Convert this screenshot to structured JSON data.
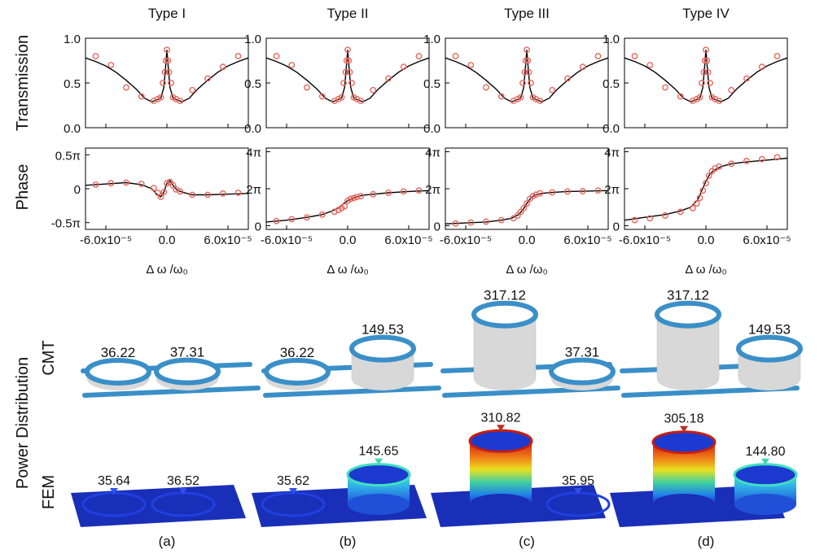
{
  "chart_data": [
    {
      "type": "line",
      "panel": "a",
      "title": "Type I",
      "transmission": {
        "ylabel": "Transmission",
        "ylim": [
          0.0,
          1.0
        ],
        "yticks": [
          "0.0",
          "0.5",
          "1.0"
        ],
        "fit": {
          "x": [
            -8e-05,
            -7e-05,
            -6e-05,
            -5e-05,
            -4e-05,
            -3e-05,
            -2.2e-05,
            -1.5e-05,
            -1e-05,
            -6e-06,
            -3e-06,
            -1e-06,
            0,
            1e-06,
            3e-06,
            6e-06,
            1e-05,
            1.5e-05,
            2.2e-05,
            3e-05,
            4e-05,
            5e-05,
            6e-05,
            7e-05,
            8e-05
          ],
          "y": [
            0.78,
            0.74,
            0.69,
            0.62,
            0.53,
            0.43,
            0.33,
            0.29,
            0.31,
            0.33,
            0.45,
            0.72,
            0.87,
            0.72,
            0.45,
            0.33,
            0.31,
            0.29,
            0.33,
            0.43,
            0.53,
            0.62,
            0.69,
            0.74,
            0.78
          ]
        },
        "points": {
          "x": [
            -7e-05,
            -5.5e-05,
            -4e-05,
            -2.5e-05,
            -1.3e-05,
            -9e-06,
            -6e-06,
            -4e-06,
            -2e-06,
            -1e-06,
            0,
            1e-06,
            2e-06,
            4e-06,
            6e-06,
            9e-06,
            1.3e-05,
            2.5e-05,
            4e-05,
            5.5e-05,
            7e-05
          ],
          "y": [
            0.8,
            0.7,
            0.45,
            0.35,
            0.3,
            0.32,
            0.34,
            0.5,
            0.62,
            0.75,
            0.87,
            0.75,
            0.62,
            0.5,
            0.34,
            0.32,
            0.3,
            0.42,
            0.55,
            0.68,
            0.8
          ]
        }
      },
      "phase": {
        "ylabel": "Phase",
        "ylim": [
          -0.6,
          0.6
        ],
        "yticks": [
          {
            "v": 0.5,
            "label": "0.5π"
          },
          {
            "v": 0,
            "label": "0"
          },
          {
            "v": -0.5,
            "label": "-0.5π"
          }
        ],
        "fit": {
          "x": [
            -8e-05,
            -6e-05,
            -4e-05,
            -2.5e-05,
            -1.5e-05,
            -1e-05,
            -6e-06,
            -3e-06,
            0,
            3e-06,
            6e-06,
            1e-05,
            1.5e-05,
            2.5e-05,
            4e-05,
            6e-05,
            8e-05
          ],
          "y": [
            0.05,
            0.07,
            0.09,
            0.06,
            0.0,
            -0.08,
            -0.12,
            -0.05,
            0.08,
            0.12,
            0.05,
            -0.02,
            -0.05,
            -0.09,
            -0.09,
            -0.08,
            -0.07
          ]
        },
        "points": {
          "x": [
            -7e-05,
            -5.5e-05,
            -4e-05,
            -2.5e-05,
            -1.3e-05,
            -9e-06,
            -6e-06,
            -3e-06,
            0,
            3e-06,
            6e-06,
            9e-06,
            1.3e-05,
            2.5e-05,
            4e-05,
            5.5e-05,
            7e-05
          ],
          "y": [
            0.06,
            0.08,
            0.09,
            0.07,
            0.01,
            -0.06,
            -0.12,
            -0.05,
            0.08,
            0.1,
            0.05,
            -0.01,
            -0.04,
            -0.09,
            -0.09,
            -0.07,
            -0.06
          ]
        }
      },
      "xlabel": "Δ ω /ω₀",
      "xticks": [
        {
          "v": -6e-05,
          "label": "-6.0x10⁻⁵"
        },
        {
          "v": 0,
          "label": "0.0"
        },
        {
          "v": 6e-05,
          "label": "6.0x10⁻⁵"
        }
      ],
      "xlim": [
        -8e-05,
        8e-05
      ]
    },
    {
      "type": "line",
      "panel": "b",
      "title": "Type II",
      "transmission": {
        "ylabel": "Transmission",
        "ylim": [
          0.0,
          1.0
        ],
        "yticks": [
          "0.0",
          "0.5",
          "1.0"
        ],
        "fit": {
          "x": [
            -8e-05,
            -7e-05,
            -6e-05,
            -5e-05,
            -4e-05,
            -3e-05,
            -2.2e-05,
            -1.5e-05,
            -1e-05,
            -6e-06,
            -3e-06,
            -1e-06,
            0,
            1e-06,
            3e-06,
            6e-06,
            1e-05,
            1.5e-05,
            2.2e-05,
            3e-05,
            4e-05,
            5e-05,
            6e-05,
            7e-05,
            8e-05
          ],
          "y": [
            0.78,
            0.74,
            0.69,
            0.62,
            0.53,
            0.43,
            0.33,
            0.29,
            0.31,
            0.33,
            0.45,
            0.72,
            0.87,
            0.72,
            0.45,
            0.33,
            0.31,
            0.29,
            0.33,
            0.43,
            0.53,
            0.62,
            0.69,
            0.74,
            0.78
          ]
        },
        "points": {
          "x": [
            -7e-05,
            -5.5e-05,
            -4e-05,
            -2.5e-05,
            -1.3e-05,
            -9e-06,
            -6e-06,
            -4e-06,
            -2e-06,
            -1e-06,
            0,
            1e-06,
            2e-06,
            4e-06,
            6e-06,
            9e-06,
            1.3e-05,
            2.5e-05,
            4e-05,
            5.5e-05,
            7e-05
          ],
          "y": [
            0.8,
            0.7,
            0.45,
            0.35,
            0.3,
            0.32,
            0.34,
            0.5,
            0.62,
            0.75,
            0.87,
            0.75,
            0.62,
            0.5,
            0.34,
            0.32,
            0.3,
            0.42,
            0.55,
            0.68,
            0.8
          ]
        }
      },
      "phase": {
        "ylabel": "Phase",
        "ylim": [
          -0.2,
          4.2
        ],
        "yticks": [
          {
            "v": 4,
            "label": "4π"
          },
          {
            "v": 2,
            "label": "2π"
          },
          {
            "v": 0,
            "label": "0"
          }
        ],
        "fit": {
          "x": [
            -8e-05,
            -6e-05,
            -4e-05,
            -2.5e-05,
            -1.5e-05,
            -8e-06,
            -4e-06,
            0,
            4e-06,
            8e-06,
            1.5e-05,
            2.5e-05,
            4e-05,
            6e-05,
            8e-05
          ],
          "y": [
            0.2,
            0.3,
            0.45,
            0.6,
            0.8,
            1.0,
            1.2,
            1.35,
            1.45,
            1.55,
            1.65,
            1.7,
            1.78,
            1.85,
            1.9
          ]
        },
        "points": {
          "x": [
            -7e-05,
            -5.5e-05,
            -4e-05,
            -2.5e-05,
            -1.3e-05,
            -9e-06,
            -6e-06,
            -3e-06,
            0,
            3e-06,
            6e-06,
            9e-06,
            1.3e-05,
            2.5e-05,
            4e-05,
            5.5e-05,
            7e-05
          ],
          "y": [
            0.25,
            0.35,
            0.45,
            0.6,
            0.75,
            0.85,
            0.95,
            1.05,
            1.35,
            1.45,
            1.5,
            1.55,
            1.6,
            1.7,
            1.78,
            1.85,
            1.9
          ]
        }
      },
      "xlabel": "Δ ω /ω₀",
      "xticks": [
        {
          "v": -6e-05,
          "label": "-6.0x10⁻⁵"
        },
        {
          "v": 0,
          "label": "0.0"
        },
        {
          "v": 6e-05,
          "label": "6.0x10⁻⁵"
        }
      ],
      "xlim": [
        -8e-05,
        8e-05
      ]
    },
    {
      "type": "line",
      "panel": "c",
      "title": "Type III",
      "transmission": {
        "ylabel": "Transmission",
        "ylim": [
          0.0,
          1.0
        ],
        "yticks": [
          "0.0",
          "0.5",
          "1.0"
        ],
        "fit": {
          "x": [
            -8e-05,
            -7e-05,
            -6e-05,
            -5e-05,
            -4e-05,
            -3e-05,
            -2.2e-05,
            -1.5e-05,
            -1e-05,
            -6e-06,
            -3e-06,
            -1e-06,
            0,
            1e-06,
            3e-06,
            6e-06,
            1e-05,
            1.5e-05,
            2.2e-05,
            3e-05,
            4e-05,
            5e-05,
            6e-05,
            7e-05,
            8e-05
          ],
          "y": [
            0.78,
            0.74,
            0.69,
            0.62,
            0.53,
            0.43,
            0.33,
            0.29,
            0.31,
            0.33,
            0.45,
            0.72,
            0.87,
            0.72,
            0.45,
            0.33,
            0.31,
            0.29,
            0.33,
            0.43,
            0.53,
            0.62,
            0.69,
            0.74,
            0.78
          ]
        },
        "points": {
          "x": [
            -7e-05,
            -5.5e-05,
            -4e-05,
            -2.5e-05,
            -1.3e-05,
            -9e-06,
            -6e-06,
            -4e-06,
            -2e-06,
            -1e-06,
            0,
            1e-06,
            2e-06,
            4e-06,
            6e-06,
            9e-06,
            1.3e-05,
            2.5e-05,
            4e-05,
            5.5e-05,
            7e-05
          ],
          "y": [
            0.8,
            0.7,
            0.45,
            0.35,
            0.3,
            0.32,
            0.34,
            0.5,
            0.62,
            0.75,
            0.87,
            0.75,
            0.62,
            0.5,
            0.34,
            0.32,
            0.3,
            0.42,
            0.55,
            0.68,
            0.8
          ]
        }
      },
      "phase": {
        "ylabel": "Phase",
        "ylim": [
          -0.2,
          4.2
        ],
        "yticks": [
          {
            "v": 4,
            "label": "4π"
          },
          {
            "v": 2,
            "label": "2π"
          },
          {
            "v": 0,
            "label": "0"
          }
        ],
        "fit": {
          "x": [
            -8e-05,
            -6e-05,
            -4e-05,
            -2.5e-05,
            -1.5e-05,
            -8e-06,
            -4e-06,
            0,
            4e-06,
            8e-06,
            1.5e-05,
            2.5e-05,
            4e-05,
            6e-05,
            8e-05
          ],
          "y": [
            0.1,
            0.15,
            0.2,
            0.3,
            0.4,
            0.6,
            0.85,
            1.2,
            1.5,
            1.65,
            1.75,
            1.8,
            1.85,
            1.87,
            1.9
          ]
        },
        "points": {
          "x": [
            -7e-05,
            -5.5e-05,
            -4e-05,
            -2.5e-05,
            -1.3e-05,
            -9e-06,
            -6e-06,
            -3e-06,
            0,
            3e-06,
            6e-06,
            9e-06,
            1.3e-05,
            2.5e-05,
            4e-05,
            5.5e-05,
            7e-05
          ],
          "y": [
            0.12,
            0.17,
            0.22,
            0.3,
            0.4,
            0.55,
            0.75,
            0.95,
            1.2,
            1.45,
            1.6,
            1.68,
            1.75,
            1.8,
            1.85,
            1.87,
            1.9
          ]
        }
      },
      "xlabel": "Δ ω /ω₀",
      "xticks": [
        {
          "v": -6e-05,
          "label": "-6.0x10⁻⁵"
        },
        {
          "v": 0,
          "label": "0.0"
        },
        {
          "v": 6e-05,
          "label": "6.0x10⁻⁵"
        }
      ],
      "xlim": [
        -8e-05,
        8e-05
      ]
    },
    {
      "type": "line",
      "panel": "d",
      "title": "Type IV",
      "transmission": {
        "ylabel": "Transmission",
        "ylim": [
          0.0,
          1.0
        ],
        "yticks": [
          "0.0",
          "0.5",
          "1.0"
        ],
        "fit": {
          "x": [
            -8e-05,
            -7e-05,
            -6e-05,
            -5e-05,
            -4e-05,
            -3e-05,
            -2.2e-05,
            -1.5e-05,
            -1e-05,
            -6e-06,
            -3e-06,
            -1e-06,
            0,
            1e-06,
            3e-06,
            6e-06,
            1e-05,
            1.5e-05,
            2.2e-05,
            3e-05,
            4e-05,
            5e-05,
            6e-05,
            7e-05,
            8e-05
          ],
          "y": [
            0.78,
            0.74,
            0.69,
            0.62,
            0.53,
            0.43,
            0.33,
            0.29,
            0.31,
            0.33,
            0.45,
            0.72,
            0.87,
            0.72,
            0.45,
            0.33,
            0.31,
            0.29,
            0.33,
            0.43,
            0.53,
            0.62,
            0.69,
            0.74,
            0.78
          ]
        },
        "points": {
          "x": [
            -7e-05,
            -5.5e-05,
            -4e-05,
            -2.5e-05,
            -1.3e-05,
            -9e-06,
            -6e-06,
            -4e-06,
            -2e-06,
            -1e-06,
            0,
            1e-06,
            2e-06,
            4e-06,
            6e-06,
            9e-06,
            1.3e-05,
            2.5e-05,
            4e-05,
            5.5e-05,
            7e-05
          ],
          "y": [
            0.8,
            0.7,
            0.45,
            0.35,
            0.3,
            0.32,
            0.34,
            0.5,
            0.62,
            0.75,
            0.87,
            0.75,
            0.62,
            0.5,
            0.34,
            0.32,
            0.3,
            0.42,
            0.55,
            0.68,
            0.8
          ]
        }
      },
      "phase": {
        "ylabel": "Phase",
        "ylim": [
          -0.2,
          4.2
        ],
        "yticks": [
          {
            "v": 4,
            "label": "4π"
          },
          {
            "v": 2,
            "label": "2π"
          },
          {
            "v": 0,
            "label": "0"
          }
        ],
        "fit": {
          "x": [
            -8e-05,
            -6e-05,
            -4e-05,
            -2.5e-05,
            -1.5e-05,
            -8e-06,
            -4e-06,
            0,
            4e-06,
            8e-06,
            1.5e-05,
            2.5e-05,
            4e-05,
            6e-05,
            8e-05
          ],
          "y": [
            0.3,
            0.45,
            0.6,
            0.8,
            1.0,
            1.4,
            1.9,
            2.4,
            2.8,
            3.0,
            3.2,
            3.35,
            3.45,
            3.55,
            3.65
          ]
        },
        "points": {
          "x": [
            -7e-05,
            -5.5e-05,
            -4e-05,
            -2.5e-05,
            -1.3e-05,
            -9e-06,
            -6e-06,
            -3e-06,
            0,
            3e-06,
            6e-06,
            9e-06,
            1.3e-05,
            2.5e-05,
            4e-05,
            5.5e-05,
            7e-05
          ],
          "y": [
            0.3,
            0.4,
            0.55,
            0.75,
            0.95,
            1.2,
            1.5,
            1.9,
            2.3,
            2.7,
            2.95,
            3.1,
            3.2,
            3.35,
            3.5,
            3.6,
            3.7
          ]
        }
      },
      "xlabel": "Δ ω /ω₀",
      "xticks": [
        {
          "v": -6e-05,
          "label": "-6.0x10⁻⁵"
        },
        {
          "v": 0,
          "label": "0.0"
        },
        {
          "v": 6e-05,
          "label": "6.0x10⁻⁵"
        }
      ],
      "xlim": [
        -8e-05,
        8e-05
      ]
    }
  ],
  "power_distribution": {
    "title": "Power Distribution",
    "cmt_label": "CMT",
    "fem_label": "FEM",
    "panels": [
      {
        "letter": "(a)",
        "cmt": [
          "36.22",
          "37.31"
        ],
        "fem": [
          "35.64",
          "36.52"
        ],
        "cmt_levels": [
          36.22,
          37.31
        ],
        "fem_levels": [
          35.64,
          36.52
        ]
      },
      {
        "letter": "(b)",
        "cmt": [
          "36.22",
          "149.53"
        ],
        "fem": [
          "35.62",
          "145.65"
        ],
        "cmt_levels": [
          36.22,
          149.53
        ],
        "fem_levels": [
          35.62,
          145.65
        ]
      },
      {
        "letter": "(c)",
        "cmt": [
          "317.12",
          "37.31"
        ],
        "fem": [
          "310.82",
          "35.95"
        ],
        "cmt_levels": [
          317.12,
          37.31
        ],
        "fem_levels": [
          310.82,
          35.95
        ]
      },
      {
        "letter": "(d)",
        "cmt": [
          "317.12",
          "149.53"
        ],
        "fem": [
          "305.18",
          "144.80"
        ],
        "cmt_levels": [
          317.12,
          149.53
        ],
        "fem_levels": [
          305.18,
          144.8
        ]
      }
    ]
  },
  "colors": {
    "marker": "#e8645a",
    "fit": "#000000",
    "ring": "#3a8fc8",
    "waveguide": "#3a8fc8",
    "fem_base": "#1a2fb8"
  }
}
